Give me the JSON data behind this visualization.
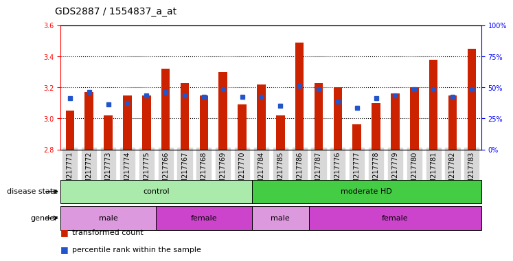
{
  "title": "GDS2887 / 1554837_a_at",
  "samples": [
    "GSM217771",
    "GSM217772",
    "GSM217773",
    "GSM217774",
    "GSM217775",
    "GSM217766",
    "GSM217767",
    "GSM217768",
    "GSM217769",
    "GSM217770",
    "GSM217784",
    "GSM217785",
    "GSM217786",
    "GSM217787",
    "GSM217776",
    "GSM217777",
    "GSM217778",
    "GSM217779",
    "GSM217780",
    "GSM217781",
    "GSM217782",
    "GSM217783"
  ],
  "bar_values": [
    3.05,
    3.17,
    3.02,
    3.15,
    3.15,
    3.32,
    3.23,
    3.15,
    3.3,
    3.09,
    3.22,
    3.02,
    3.49,
    3.23,
    3.2,
    2.96,
    3.1,
    3.16,
    3.2,
    3.38,
    3.15,
    3.45
  ],
  "dot_values": [
    3.13,
    3.17,
    3.09,
    3.1,
    3.15,
    3.17,
    3.15,
    3.14,
    3.19,
    3.14,
    3.14,
    3.08,
    3.21,
    3.19,
    3.11,
    3.07,
    3.13,
    3.15,
    3.19,
    3.19,
    3.14,
    3.19
  ],
  "ymin": 2.8,
  "ymax": 3.6,
  "yticks_left": [
    2.8,
    3.0,
    3.2,
    3.4,
    3.6
  ],
  "right_ytick_vals": [
    0,
    25,
    50,
    75,
    100
  ],
  "bar_color": "#cc2200",
  "dot_color": "#2255cc",
  "bar_bottom": 2.8,
  "bg_color_chart": "#ffffff",
  "tick_label_bg": "#d8d8d8",
  "disease_state_groups": [
    {
      "label": "control",
      "start": 0,
      "end": 10,
      "color": "#aaeaaa"
    },
    {
      "label": "moderate HD",
      "start": 10,
      "end": 22,
      "color": "#44cc44"
    }
  ],
  "gender_groups": [
    {
      "label": "male",
      "start": 0,
      "end": 5,
      "color": "#dd99dd"
    },
    {
      "label": "female",
      "start": 5,
      "end": 10,
      "color": "#cc44cc"
    },
    {
      "label": "male",
      "start": 10,
      "end": 13,
      "color": "#dd99dd"
    },
    {
      "label": "female",
      "start": 13,
      "end": 22,
      "color": "#cc44cc"
    }
  ],
  "disease_label": "disease state",
  "gender_label": "gender",
  "legend_items": [
    {
      "label": "transformed count",
      "color": "#cc2200"
    },
    {
      "label": "percentile rank within the sample",
      "color": "#2255cc"
    }
  ],
  "hgrid_lines": [
    3.0,
    3.2,
    3.4
  ],
  "title_fontsize": 10,
  "axis_label_fontsize": 8,
  "tick_fontsize": 7,
  "group_label_fontsize": 8
}
